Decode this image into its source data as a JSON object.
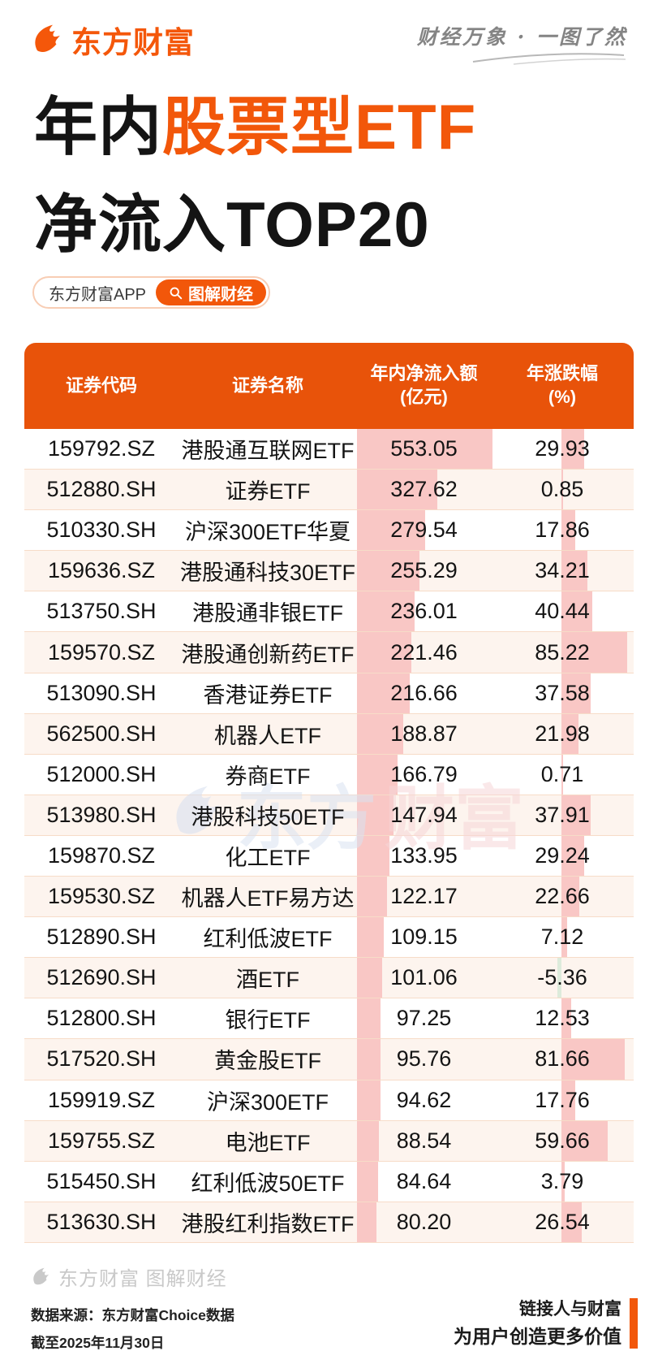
{
  "colors": {
    "brand_orange": "#F2570A",
    "header_orange": "#E8530A",
    "bar_pink": "#F9C7C5",
    "bar_green": "#DDEBDB",
    "row_alt_bg": "#FDF4EE",
    "row_divider": "#F7DCC8",
    "text_black": "#141414",
    "slogan_gray": "#848484",
    "footer_gray": "#C9C9C9"
  },
  "masthead": {
    "logo_text": "东方财富",
    "slogan": "财经万象 · 一图了然"
  },
  "title": {
    "line1_black": "年内",
    "line1_orange": "股票型ETF",
    "line2": "净流入TOP20"
  },
  "badge": {
    "app_label": "东方财富APP",
    "button_label": "图解财经"
  },
  "table": {
    "columns": [
      {
        "line1": "证券代码",
        "line2": ""
      },
      {
        "line1": "证券名称",
        "line2": ""
      },
      {
        "line1": "年内净流入额",
        "line2": "(亿元)"
      },
      {
        "line1": "年涨跌幅",
        "line2": "(%)"
      }
    ],
    "rows": [
      {
        "code": "159792.SZ",
        "name": "港股通互联网ETF",
        "inflow": "553.05",
        "pct": "29.93"
      },
      {
        "code": "512880.SH",
        "name": "证券ETF",
        "inflow": "327.62",
        "pct": "0.85"
      },
      {
        "code": "510330.SH",
        "name": "沪深300ETF华夏",
        "inflow": "279.54",
        "pct": "17.86"
      },
      {
        "code": "159636.SZ",
        "name": "港股通科技30ETF",
        "inflow": "255.29",
        "pct": "34.21"
      },
      {
        "code": "513750.SH",
        "name": "港股通非银ETF",
        "inflow": "236.01",
        "pct": "40.44"
      },
      {
        "code": "159570.SZ",
        "name": "港股通创新药ETF",
        "inflow": "221.46",
        "pct": "85.22"
      },
      {
        "code": "513090.SH",
        "name": "香港证券ETF",
        "inflow": "216.66",
        "pct": "37.58"
      },
      {
        "code": "562500.SH",
        "name": "机器人ETF",
        "inflow": "188.87",
        "pct": "21.98"
      },
      {
        "code": "512000.SH",
        "name": "券商ETF",
        "inflow": "166.79",
        "pct": "0.71"
      },
      {
        "code": "513980.SH",
        "name": "港股科技50ETF",
        "inflow": "147.94",
        "pct": "37.91"
      },
      {
        "code": "159870.SZ",
        "name": "化工ETF",
        "inflow": "133.95",
        "pct": "29.24"
      },
      {
        "code": "159530.SZ",
        "name": "机器人ETF易方达",
        "inflow": "122.17",
        "pct": "22.66"
      },
      {
        "code": "512890.SH",
        "name": "红利低波ETF",
        "inflow": "109.15",
        "pct": "7.12"
      },
      {
        "code": "512690.SH",
        "name": "酒ETF",
        "inflow": "101.06",
        "pct": "-5.36"
      },
      {
        "code": "512800.SH",
        "name": "银行ETF",
        "inflow": "97.25",
        "pct": "12.53"
      },
      {
        "code": "517520.SH",
        "name": "黄金股ETF",
        "inflow": "95.76",
        "pct": "81.66"
      },
      {
        "code": "159919.SZ",
        "name": "沪深300ETF",
        "inflow": "94.62",
        "pct": "17.76"
      },
      {
        "code": "159755.SZ",
        "name": "电池ETF",
        "inflow": "88.54",
        "pct": "59.66"
      },
      {
        "code": "515450.SH",
        "name": "红利低波50ETF",
        "inflow": "84.64",
        "pct": "3.79"
      },
      {
        "code": "513630.SH",
        "name": "港股红利指数ETF",
        "inflow": "80.20",
        "pct": "26.54"
      }
    ]
  },
  "watermark": {
    "text_blue": "东方",
    "text_pink": "财富"
  },
  "footer": {
    "brand_watermark": "东方财富 图解财经",
    "source_line1": "数据来源：东方财富Choice数据",
    "source_line2": "截至2025年11月30日",
    "mission_line1": "链接人与财富",
    "mission_line2": "为用户创造更多价值"
  },
  "chart_data": {
    "type": "table",
    "title": "年内股票型ETF净流入TOP20",
    "columns": [
      "证券代码",
      "证券名称",
      "年内净流入额(亿元)",
      "年涨跌幅(%)"
    ],
    "rows": [
      [
        "159792.SZ",
        "港股通互联网ETF",
        553.05,
        29.93
      ],
      [
        "512880.SH",
        "证券ETF",
        327.62,
        0.85
      ],
      [
        "510330.SH",
        "沪深300ETF华夏",
        279.54,
        17.86
      ],
      [
        "159636.SZ",
        "港股通科技30ETF",
        255.29,
        34.21
      ],
      [
        "513750.SH",
        "港股通非银ETF",
        236.01,
        40.44
      ],
      [
        "159570.SZ",
        "港股通创新药ETF",
        221.46,
        85.22
      ],
      [
        "513090.SH",
        "香港证券ETF",
        216.66,
        37.58
      ],
      [
        "562500.SH",
        "机器人ETF",
        188.87,
        21.98
      ],
      [
        "512000.SH",
        "券商ETF",
        166.79,
        0.71
      ],
      [
        "513980.SH",
        "港股科技50ETF",
        147.94,
        37.91
      ],
      [
        "159870.SZ",
        "化工ETF",
        133.95,
        29.24
      ],
      [
        "159530.SZ",
        "机器人ETF易方达",
        122.17,
        22.66
      ],
      [
        "512890.SH",
        "红利低波ETF",
        109.15,
        7.12
      ],
      [
        "512690.SH",
        "酒ETF",
        101.06,
        -5.36
      ],
      [
        "512800.SH",
        "银行ETF",
        97.25,
        12.53
      ],
      [
        "517520.SH",
        "黄金股ETF",
        95.76,
        81.66
      ],
      [
        "159919.SZ",
        "沪深300ETF",
        94.62,
        17.76
      ],
      [
        "159755.SZ",
        "电池ETF",
        88.54,
        59.66
      ],
      [
        "515450.SH",
        "红利低波50ETF",
        84.64,
        3.79
      ],
      [
        "513630.SH",
        "港股红利指数ETF",
        80.2,
        26.54
      ]
    ],
    "bar_encoding": {
      "inflow_bar": "pink bar behind column 3, width proportional to value, baseline 0",
      "pct_bar": "pink bar behind column 4 anchored at decimal position, green when negative"
    },
    "source": "东方财富Choice数据",
    "as_of": "2025年11月30日"
  }
}
